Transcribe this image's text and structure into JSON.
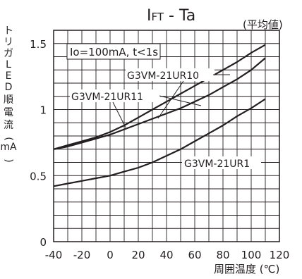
{
  "chart_data": {
    "type": "line",
    "title_main": "I",
    "title_sub": "FT",
    "title_rest": " - Ta",
    "subtitle": "(平均値)",
    "ylabel_chars": [
      "ト",
      "リ",
      "ガ",
      "L",
      "E",
      "D",
      "順",
      "電",
      "流",
      "(",
      "mA",
      ")"
    ],
    "xlabel": "周囲温度 (℃)",
    "xlim": [
      -40,
      120
    ],
    "ylim": [
      0,
      1.6
    ],
    "xticks": [
      -40,
      -20,
      0,
      20,
      40,
      60,
      80,
      100,
      120
    ],
    "xtick_labels": [
      "-40",
      "-20",
      "0",
      "20",
      "40",
      "60",
      "80",
      "100",
      "120"
    ],
    "yticks": [
      0,
      0.5,
      1,
      1.5
    ],
    "ytick_labels": [
      "0",
      "0.5",
      "1",
      "1.5"
    ],
    "grid": true,
    "annotation": "Io=100mA, t<1s",
    "series": [
      {
        "name": "G3VM-21UR10",
        "x": [
          -40,
          -30,
          -20,
          -10,
          0,
          10,
          20,
          30,
          40,
          50,
          60,
          70,
          80,
          90,
          100,
          110
        ],
        "y": [
          0.7,
          0.73,
          0.76,
          0.79,
          0.83,
          0.88,
          0.94,
          1.0,
          1.06,
          1.12,
          1.18,
          1.24,
          1.3,
          1.36,
          1.43,
          1.49
        ]
      },
      {
        "name": "G3VM-21UR11",
        "x": [
          -40,
          -30,
          -20,
          -10,
          0,
          10,
          20,
          30,
          40,
          50,
          60,
          70,
          80,
          90,
          100,
          110
        ],
        "y": [
          0.7,
          0.72,
          0.75,
          0.78,
          0.81,
          0.85,
          0.89,
          0.93,
          0.97,
          1.01,
          1.06,
          1.11,
          1.17,
          1.23,
          1.3,
          1.39
        ]
      },
      {
        "name": "G3VM-21UR1",
        "x": [
          -40,
          -30,
          -20,
          -10,
          0,
          10,
          20,
          30,
          40,
          50,
          60,
          70,
          80,
          90,
          100,
          110
        ],
        "y": [
          0.42,
          0.44,
          0.46,
          0.48,
          0.5,
          0.53,
          0.56,
          0.6,
          0.65,
          0.7,
          0.76,
          0.82,
          0.88,
          0.95,
          1.01,
          1.08
        ]
      }
    ]
  }
}
